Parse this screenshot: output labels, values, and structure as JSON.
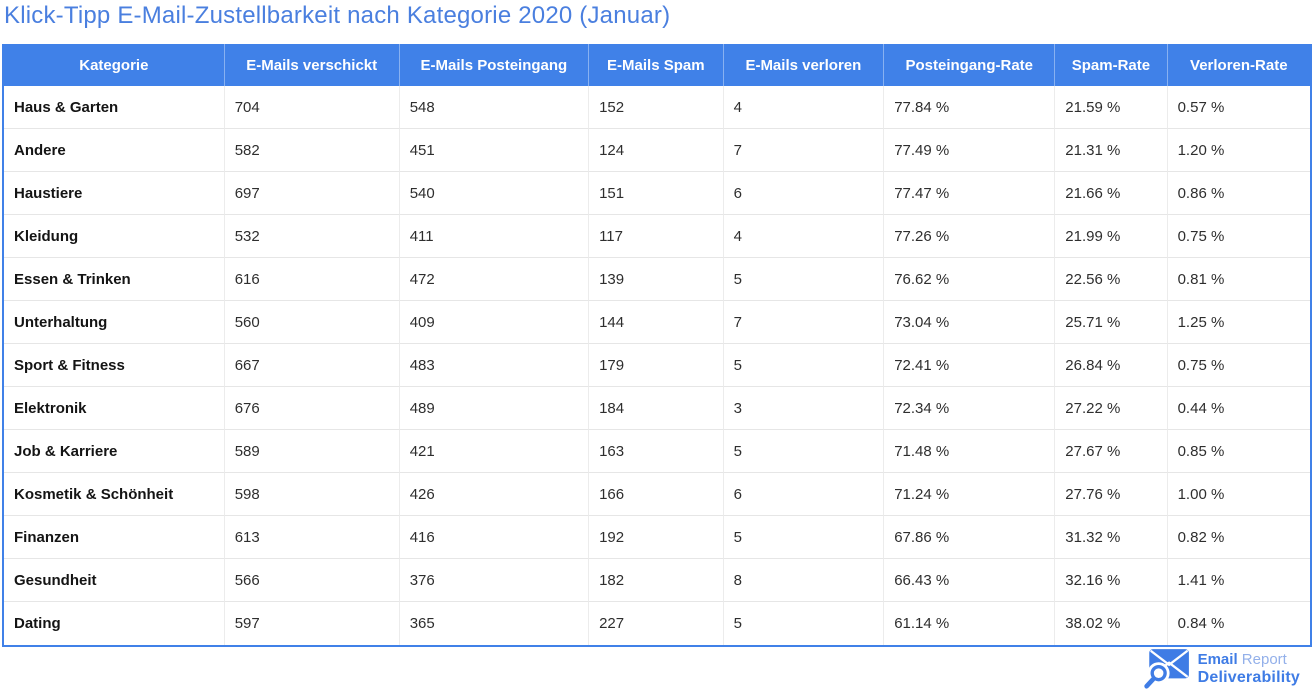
{
  "page": {
    "title": "Klick-Tipp E-Mail-Zustellbarkeit nach Kategorie 2020 (Januar)"
  },
  "colors": {
    "accent_blue": "#4081e8",
    "title_blue": "#4a7fdf",
    "header_text": "#ffffff",
    "row_separator": "#e6e6e6",
    "category_text": "#141414",
    "cell_text": "#2e2e2e",
    "logo_blue": "#3f7ce5",
    "logo_light_blue": "#93b0ea"
  },
  "chart_data": {
    "type": "table",
    "title": "Klick-Tipp E-Mail-Zustellbarkeit nach Kategorie 2020 (Januar)",
    "columns": [
      "Kategorie",
      "E-Mails verschickt",
      "E-Mails Posteingang",
      "E-Mails Spam",
      "E-Mails verloren",
      "Posteingang-Rate",
      "Spam-Rate",
      "Verloren-Rate"
    ],
    "rows": [
      [
        "Haus & Garten",
        "704",
        "548",
        "152",
        "4",
        "77.84 %",
        "21.59 %",
        "0.57 %"
      ],
      [
        "Andere",
        "582",
        "451",
        "124",
        "7",
        "77.49 %",
        "21.31 %",
        "1.20 %"
      ],
      [
        "Haustiere",
        "697",
        "540",
        "151",
        "6",
        "77.47 %",
        "21.66 %",
        "0.86 %"
      ],
      [
        "Kleidung",
        "532",
        "411",
        "117",
        "4",
        "77.26 %",
        "21.99 %",
        "0.75 %"
      ],
      [
        "Essen & Trinken",
        "616",
        "472",
        "139",
        "5",
        "76.62 %",
        "22.56 %",
        "0.81 %"
      ],
      [
        "Unterhaltung",
        "560",
        "409",
        "144",
        "7",
        "73.04 %",
        "25.71 %",
        "1.25 %"
      ],
      [
        "Sport & Fitness",
        "667",
        "483",
        "179",
        "5",
        "72.41 %",
        "26.84 %",
        "0.75 %"
      ],
      [
        "Elektronik",
        "676",
        "489",
        "184",
        "3",
        "72.34 %",
        "27.22 %",
        "0.44 %"
      ],
      [
        "Job & Karriere",
        "589",
        "421",
        "163",
        "5",
        "71.48 %",
        "27.67 %",
        "0.85 %"
      ],
      [
        "Kosmetik & Schönheit",
        "598",
        "426",
        "166",
        "6",
        "71.24 %",
        "27.76 %",
        "1.00 %"
      ],
      [
        "Finanzen",
        "613",
        "416",
        "192",
        "5",
        "67.86 %",
        "31.32 %",
        "0.82 %"
      ],
      [
        "Gesundheit",
        "566",
        "376",
        "182",
        "8",
        "66.43 %",
        "32.16 %",
        "1.41 %"
      ],
      [
        "Dating",
        "597",
        "365",
        "227",
        "5",
        "61.14 %",
        "38.02 %",
        "0.84 %"
      ]
    ]
  },
  "logo": {
    "line1_bold": "Email",
    "line1_light": "Report",
    "line2": "Deliverability"
  }
}
